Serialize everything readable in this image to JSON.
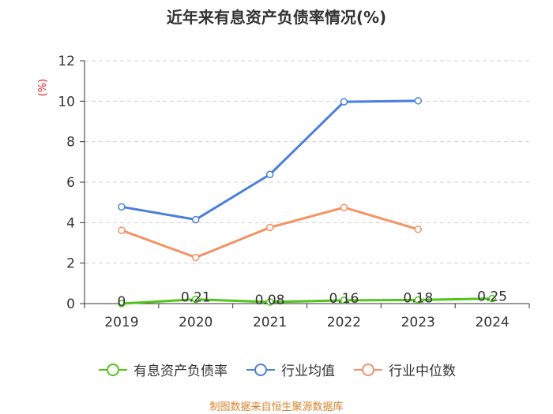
{
  "chart_data": {
    "type": "line",
    "title": "近年来有息资产负债率情况(%)",
    "ylabel": "(%)",
    "xlabel": "",
    "categories": [
      "2019",
      "2020",
      "2021",
      "2022",
      "2023",
      "2024"
    ],
    "ylim": [
      0,
      12
    ],
    "yticks": [
      0,
      2,
      4,
      6,
      8,
      10,
      12
    ],
    "grid": true,
    "legend_position": "bottom",
    "series": [
      {
        "name": "有息资产负债率",
        "color": "#52c41a",
        "values": [
          0,
          0.21,
          0.08,
          0.16,
          0.18,
          0.25
        ],
        "labels": [
          "0",
          "0.21",
          "0.08",
          "0.16",
          "0.18",
          "0.25"
        ]
      },
      {
        "name": "行业均值",
        "color": "#4a7fdc",
        "values": [
          4.78,
          4.15,
          6.38,
          9.97,
          10.02,
          null
        ]
      },
      {
        "name": "行业中位数",
        "color": "#f59265",
        "values": [
          3.62,
          2.28,
          3.76,
          4.75,
          3.67,
          null
        ]
      }
    ]
  },
  "footer": {
    "source": "制图数据来自恒生聚源数据库"
  }
}
